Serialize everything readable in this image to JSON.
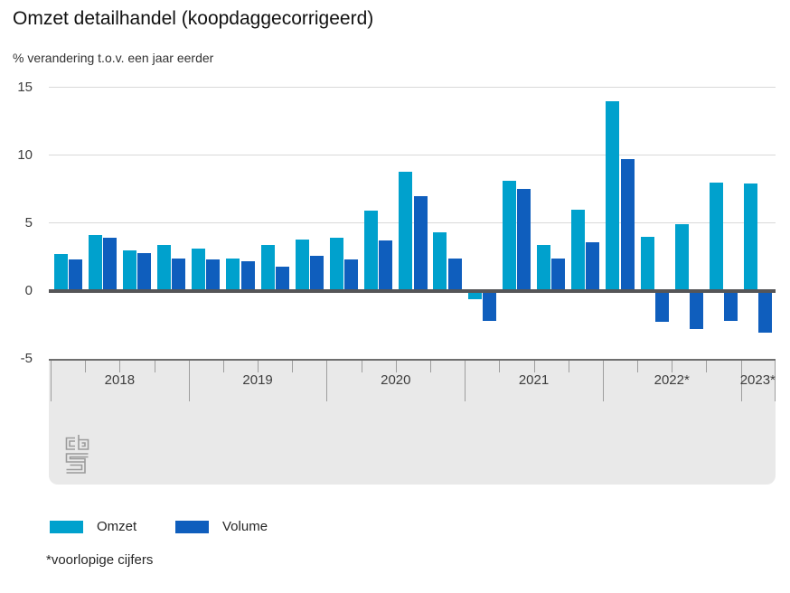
{
  "header": {
    "title": "Omzet detailhandel (koopdaggecorrigeerd)",
    "subtitle": "% verandering t.o.v. een jaar eerder"
  },
  "footnote": "*voorlopige cijfers",
  "logo": "cbs-logo",
  "colors": {
    "omzet": "#00a1cd",
    "volume": "#0f5ebd",
    "gridline": "#d9d9d9",
    "zero_line": "#555557",
    "axis_band_bg": "#e9e9e9",
    "axis_band_border": "#6f6f6f",
    "tick": "#9e9e9e",
    "text": "#262626"
  },
  "legend": {
    "items": [
      {
        "label": "Omzet",
        "color": "#00a1cd"
      },
      {
        "label": "Volume",
        "color": "#0f5ebd"
      }
    ]
  },
  "chart_data": {
    "type": "bar",
    "title": "Omzet detailhandel (koopdaggecorrigeerd)",
    "subtitle": "% verandering t.o.v. een jaar eerder",
    "ylabel": "% verandering t.o.v. een jaar eerder",
    "ylim": [
      -5,
      15
    ],
    "y_ticks": [
      15,
      10,
      5,
      0,
      -5
    ],
    "grid": "horizontal",
    "legend_position": "bottom",
    "x_groups": [
      {
        "label": "2018",
        "quarters": 4
      },
      {
        "label": "2019",
        "quarters": 4
      },
      {
        "label": "2020",
        "quarters": 4
      },
      {
        "label": "2021",
        "quarters": 4
      },
      {
        "label": "2022*",
        "quarters": 4
      },
      {
        "label": "2023*",
        "quarters": 1
      }
    ],
    "categories": [
      "2018 Q1",
      "2018 Q2",
      "2018 Q3",
      "2018 Q4",
      "2019 Q1",
      "2019 Q2",
      "2019 Q3",
      "2019 Q4",
      "2020 Q1",
      "2020 Q2",
      "2020 Q3",
      "2020 Q4",
      "2021 Q1",
      "2021 Q2",
      "2021 Q3",
      "2021 Q4",
      "2022 Q1",
      "2022 Q2",
      "2022 Q3",
      "2022 Q4",
      "2023 Q1"
    ],
    "series": [
      {
        "name": "Omzet",
        "color": "#00a1cd",
        "values": [
          2.7,
          4.1,
          3.0,
          3.4,
          3.1,
          2.4,
          3.4,
          3.8,
          3.9,
          5.9,
          8.8,
          4.3,
          -0.6,
          8.1,
          3.4,
          6.0,
          14.0,
          4.0,
          4.9,
          8.0,
          7.9
        ]
      },
      {
        "name": "Volume",
        "color": "#0f5ebd",
        "values": [
          2.3,
          3.9,
          2.8,
          2.4,
          2.3,
          2.2,
          1.8,
          2.6,
          2.3,
          3.7,
          7.0,
          2.4,
          -2.2,
          7.5,
          2.4,
          3.6,
          9.7,
          -2.3,
          -2.8,
          -2.2,
          -3.1
        ]
      }
    ]
  }
}
